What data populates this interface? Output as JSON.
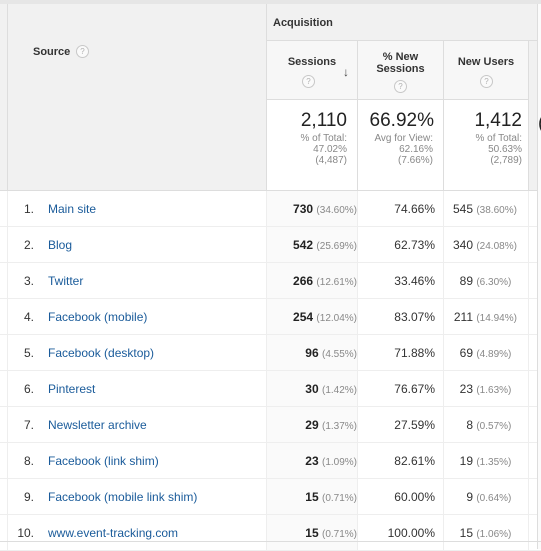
{
  "header": {
    "group_label": "Acquisition",
    "next_group_label": "B",
    "source_label": "Source",
    "help_glyph": "?",
    "sort_glyph": "↓",
    "columns": [
      {
        "line1": "Sessions",
        "line2": ""
      },
      {
        "line1": "% New",
        "line2": "Sessions"
      },
      {
        "line1": "New Users",
        "line2": ""
      }
    ]
  },
  "summary": {
    "sessions": {
      "value": "2,110",
      "line1": "% of Total:",
      "line2": "47.02%",
      "line3": "(4,487)"
    },
    "new_sessions": {
      "value": "66.92%",
      "line1": "Avg for View:",
      "line2": "62.16%",
      "line3": "(7.66%)"
    },
    "new_users": {
      "value": "1,412",
      "line1": "% of Total:",
      "line2": "50.63%",
      "line3": "(2,789)"
    },
    "next_col_glyph": "("
  },
  "rows": [
    {
      "num": "1.",
      "source": "Main site",
      "sessions": "730",
      "sessions_pct": "(34.60%)",
      "new_sessions": "74.66%",
      "new_users": "545",
      "new_users_pct": "(38.60%)"
    },
    {
      "num": "2.",
      "source": "Blog",
      "sessions": "542",
      "sessions_pct": "(25.69%)",
      "new_sessions": "62.73%",
      "new_users": "340",
      "new_users_pct": "(24.08%)"
    },
    {
      "num": "3.",
      "source": "Twitter",
      "sessions": "266",
      "sessions_pct": "(12.61%)",
      "new_sessions": "33.46%",
      "new_users": "89",
      "new_users_pct": "(6.30%)"
    },
    {
      "num": "4.",
      "source": "Facebook (mobile)",
      "sessions": "254",
      "sessions_pct": "(12.04%)",
      "new_sessions": "83.07%",
      "new_users": "211",
      "new_users_pct": "(14.94%)"
    },
    {
      "num": "5.",
      "source": "Facebook (desktop)",
      "sessions": "96",
      "sessions_pct": "(4.55%)",
      "new_sessions": "71.88%",
      "new_users": "69",
      "new_users_pct": "(4.89%)"
    },
    {
      "num": "6.",
      "source": "Pinterest",
      "sessions": "30",
      "sessions_pct": "(1.42%)",
      "new_sessions": "76.67%",
      "new_users": "23",
      "new_users_pct": "(1.63%)"
    },
    {
      "num": "7.",
      "source": "Newsletter archive",
      "sessions": "29",
      "sessions_pct": "(1.37%)",
      "new_sessions": "27.59%",
      "new_users": "8",
      "new_users_pct": "(0.57%)"
    },
    {
      "num": "8.",
      "source": "Facebook (link shim)",
      "sessions": "23",
      "sessions_pct": "(1.09%)",
      "new_sessions": "82.61%",
      "new_users": "19",
      "new_users_pct": "(1.35%)"
    },
    {
      "num": "9.",
      "source": "Facebook (mobile link shim)",
      "sessions": "15",
      "sessions_pct": "(0.71%)",
      "new_sessions": "60.00%",
      "new_users": "9",
      "new_users_pct": "(0.64%)"
    },
    {
      "num": "10.",
      "source": "www.event-tracking.com",
      "sessions": "15",
      "sessions_pct": "(0.71%)",
      "new_sessions": "100.00%",
      "new_users": "15",
      "new_users_pct": "(1.06%)"
    }
  ]
}
